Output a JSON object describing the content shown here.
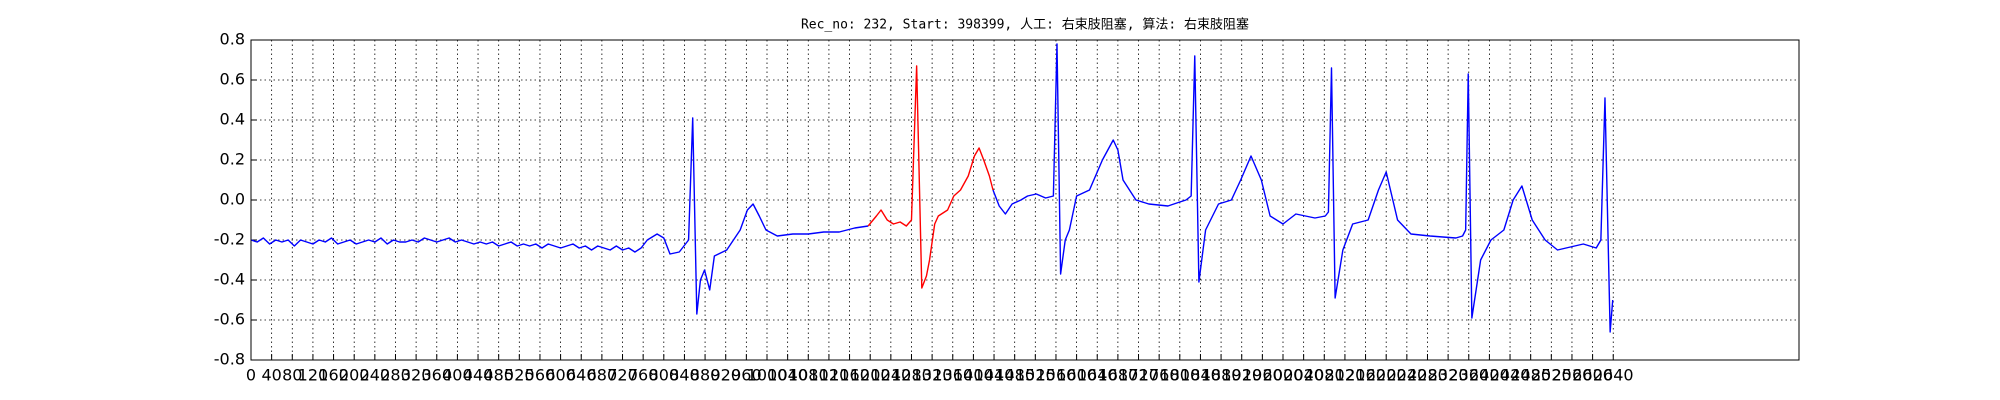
{
  "chart_data": {
    "type": "line",
    "title": "Rec_no: 232, Start: 398399, 人工: 右束肢阻塞, 算法: 右束肢阻塞",
    "xlim": [
      0,
      3000
    ],
    "ylim": [
      -0.8,
      0.8
    ],
    "xticks": [
      0,
      40,
      80,
      120,
      160,
      200,
      240,
      280,
      320,
      360,
      400,
      440,
      480,
      520,
      560,
      600,
      640,
      680,
      720,
      760,
      800,
      840,
      880,
      920,
      960,
      1000,
      1040,
      1080,
      1120,
      1160,
      1200,
      1240,
      1280,
      1320,
      1360,
      1400,
      1440,
      1480,
      1520,
      1560,
      1600,
      1640,
      1680,
      1720,
      1760,
      1800,
      1840,
      1880,
      1920,
      1960,
      2000,
      2040,
      2080,
      2120,
      2160,
      2200,
      2240,
      2280,
      2320,
      2360,
      2400,
      2440,
      2480,
      2520,
      2560,
      2600,
      2640
    ],
    "yticks": [
      -0.8,
      -0.6,
      -0.4,
      -0.2,
      {
        "value": 0,
        "label": "0.0"
      },
      0.2,
      0.4,
      0.6,
      0.8
    ],
    "grid": true,
    "series": [
      {
        "color": "#0000ff",
        "x": [
          0,
          12,
          24,
          36,
          48,
          60,
          72,
          84,
          96,
          108,
          120,
          132,
          144,
          156,
          168,
          180,
          192,
          204,
          216,
          228,
          240,
          252,
          264,
          276,
          288,
          300,
          312,
          324,
          336,
          348,
          360,
          372,
          384,
          396,
          408,
          420,
          432,
          444,
          456,
          468,
          480,
          492,
          504,
          516,
          528,
          540,
          552,
          564,
          576,
          588,
          600,
          612,
          624,
          636,
          648,
          660,
          672,
          684,
          696,
          708,
          720,
          732,
          744,
          756,
          768,
          787,
          800,
          812,
          830,
          848,
          856,
          864,
          871,
          879,
          889,
          898,
          922,
          948,
          962,
          973,
          985,
          998,
          1020,
          1050,
          1080,
          1110,
          1140,
          1170,
          1196,
          1300,
          1438,
          1450,
          1462,
          1475,
          1492,
          1505,
          1522,
          1540,
          1555,
          1562,
          1569,
          1578,
          1586,
          1600,
          1625,
          1650,
          1671,
          1680,
          1690,
          1715,
          1740,
          1777,
          1800,
          1812,
          1822,
          1829,
          1837,
          1850,
          1875,
          1900,
          1918,
          1938,
          1958,
          1975,
          2000,
          2025,
          2062,
          2082,
          2088,
          2094,
          2101,
          2116,
          2135,
          2165,
          2185,
          2200,
          2222,
          2248,
          2285,
          2335,
          2348,
          2354,
          2359,
          2366,
          2383,
          2403,
          2428,
          2446,
          2463,
          2483,
          2508,
          2532,
          2582,
          2607,
          2616,
          2624,
          2634,
          2639
        ],
        "values": [
          -0.2,
          -0.21,
          -0.19,
          -0.22,
          -0.2,
          -0.21,
          -0.2,
          -0.23,
          -0.2,
          -0.21,
          -0.22,
          -0.2,
          -0.21,
          -0.19,
          -0.22,
          -0.21,
          -0.2,
          -0.22,
          -0.21,
          -0.2,
          -0.21,
          -0.19,
          -0.22,
          -0.2,
          -0.21,
          -0.21,
          -0.2,
          -0.21,
          -0.19,
          -0.2,
          -0.21,
          -0.2,
          -0.19,
          -0.21,
          -0.2,
          -0.21,
          -0.22,
          -0.21,
          -0.22,
          -0.21,
          -0.23,
          -0.22,
          -0.21,
          -0.23,
          -0.22,
          -0.23,
          -0.22,
          -0.24,
          -0.22,
          -0.23,
          -0.24,
          -0.23,
          -0.22,
          -0.24,
          -0.23,
          -0.25,
          -0.23,
          -0.24,
          -0.25,
          -0.23,
          -0.25,
          -0.24,
          -0.26,
          -0.24,
          -0.2,
          -0.17,
          -0.19,
          -0.27,
          -0.26,
          -0.2,
          0.41,
          -0.57,
          -0.4,
          -0.35,
          -0.45,
          -0.28,
          -0.25,
          -0.15,
          -0.05,
          -0.02,
          -0.08,
          -0.15,
          -0.18,
          -0.17,
          -0.17,
          -0.16,
          -0.16,
          -0.14,
          -0.13,
          null,
          0.05,
          -0.03,
          -0.07,
          -0.02,
          0.0,
          0.02,
          0.03,
          0.01,
          0.02,
          0.78,
          -0.37,
          -0.2,
          -0.15,
          0.02,
          0.05,
          0.2,
          0.3,
          0.25,
          0.1,
          0.0,
          -0.02,
          -0.03,
          -0.01,
          0.0,
          0.02,
          0.72,
          -0.41,
          -0.15,
          -0.02,
          0.0,
          0.1,
          0.22,
          0.1,
          -0.08,
          -0.12,
          -0.07,
          -0.09,
          -0.08,
          -0.06,
          0.66,
          -0.49,
          -0.25,
          -0.12,
          -0.1,
          0.05,
          0.14,
          -0.1,
          -0.17,
          -0.18,
          -0.19,
          -0.18,
          -0.15,
          0.63,
          -0.59,
          -0.3,
          -0.2,
          -0.15,
          0.0,
          0.07,
          -0.1,
          -0.2,
          -0.25,
          -0.22,
          -0.24,
          -0.2,
          0.51,
          -0.66,
          -0.5
        ]
      },
      {
        "color": "#ff0000",
        "x": [
          1196,
          1212,
          1221,
          1233,
          1245,
          1258,
          1270,
          1280,
          1290,
          1300,
          1309,
          1315,
          1325,
          1332,
          1350,
          1362,
          1375,
          1390,
          1402,
          1411,
          1420,
          1431,
          1438
        ],
        "values": [
          -0.13,
          -0.08,
          -0.05,
          -0.1,
          -0.12,
          -0.11,
          -0.13,
          -0.1,
          0.67,
          -0.44,
          -0.38,
          -0.3,
          -0.12,
          -0.08,
          -0.05,
          0.02,
          0.05,
          0.12,
          0.22,
          0.26,
          0.2,
          0.12,
          0.05
        ]
      }
    ]
  }
}
